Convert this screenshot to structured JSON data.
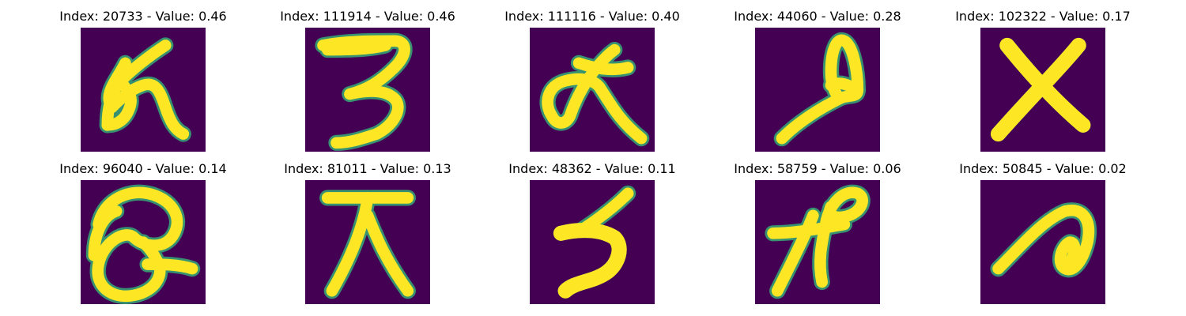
{
  "colors": {
    "background": "#440154",
    "stroke": "#fde725",
    "edge": "#35b779"
  },
  "panels": [
    {
      "title": "Index: 20733 - Value: 0.46"
    },
    {
      "title": "Index: 111914 - Value: 0.46"
    },
    {
      "title": "Index: 111116 - Value: 0.40"
    },
    {
      "title": "Index: 44060 - Value: 0.28"
    },
    {
      "title": "Index: 102322 - Value: 0.17"
    },
    {
      "title": "Index: 96040 - Value: 0.14"
    },
    {
      "title": "Index: 81011 - Value: 0.13"
    },
    {
      "title": "Index: 48362 - Value: 0.11"
    },
    {
      "title": "Index: 58759 - Value: 0.06"
    },
    {
      "title": "Index: 50845 - Value: 0.02"
    }
  ]
}
